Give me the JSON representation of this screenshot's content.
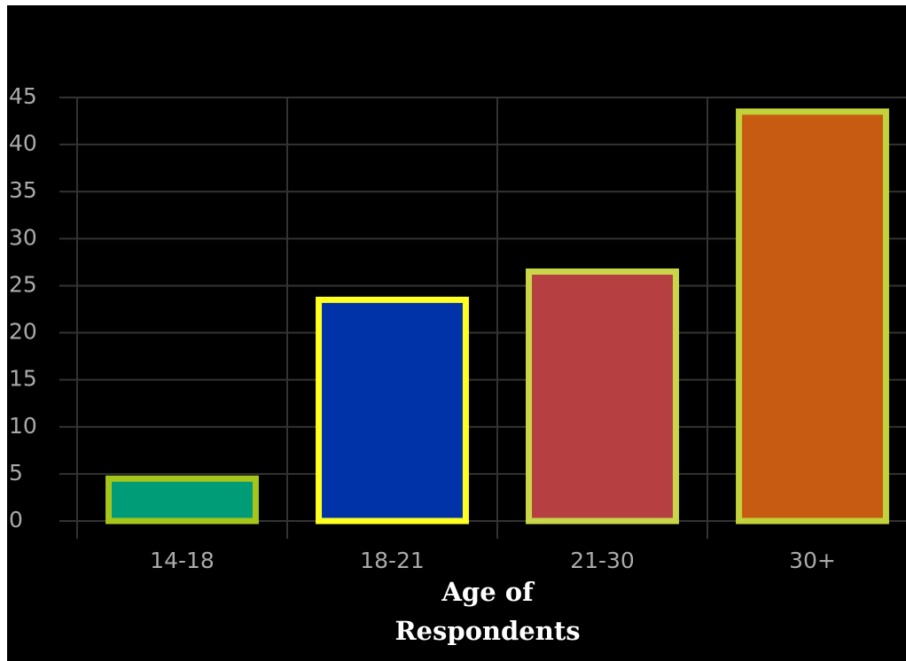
{
  "chart_data": {
    "type": "bar",
    "x_label": "Age of Respondents",
    "categories": [
      "14-18",
      "18-21",
      "21-30",
      "30+"
    ],
    "values": [
      4.5,
      23.5,
      26.5,
      43.5
    ],
    "colors": [
      "#009b77",
      "#0033a8",
      "#b53f41",
      "#c75b12"
    ],
    "edge_colors": [
      "#a6c51a",
      "#ffff22",
      "#c9d64a",
      "#c2d23a"
    ],
    "ylim": [
      0,
      45
    ],
    "yticks": [
      0,
      5,
      10,
      15,
      20,
      25,
      30,
      35,
      40,
      45
    ],
    "grid": true
  }
}
